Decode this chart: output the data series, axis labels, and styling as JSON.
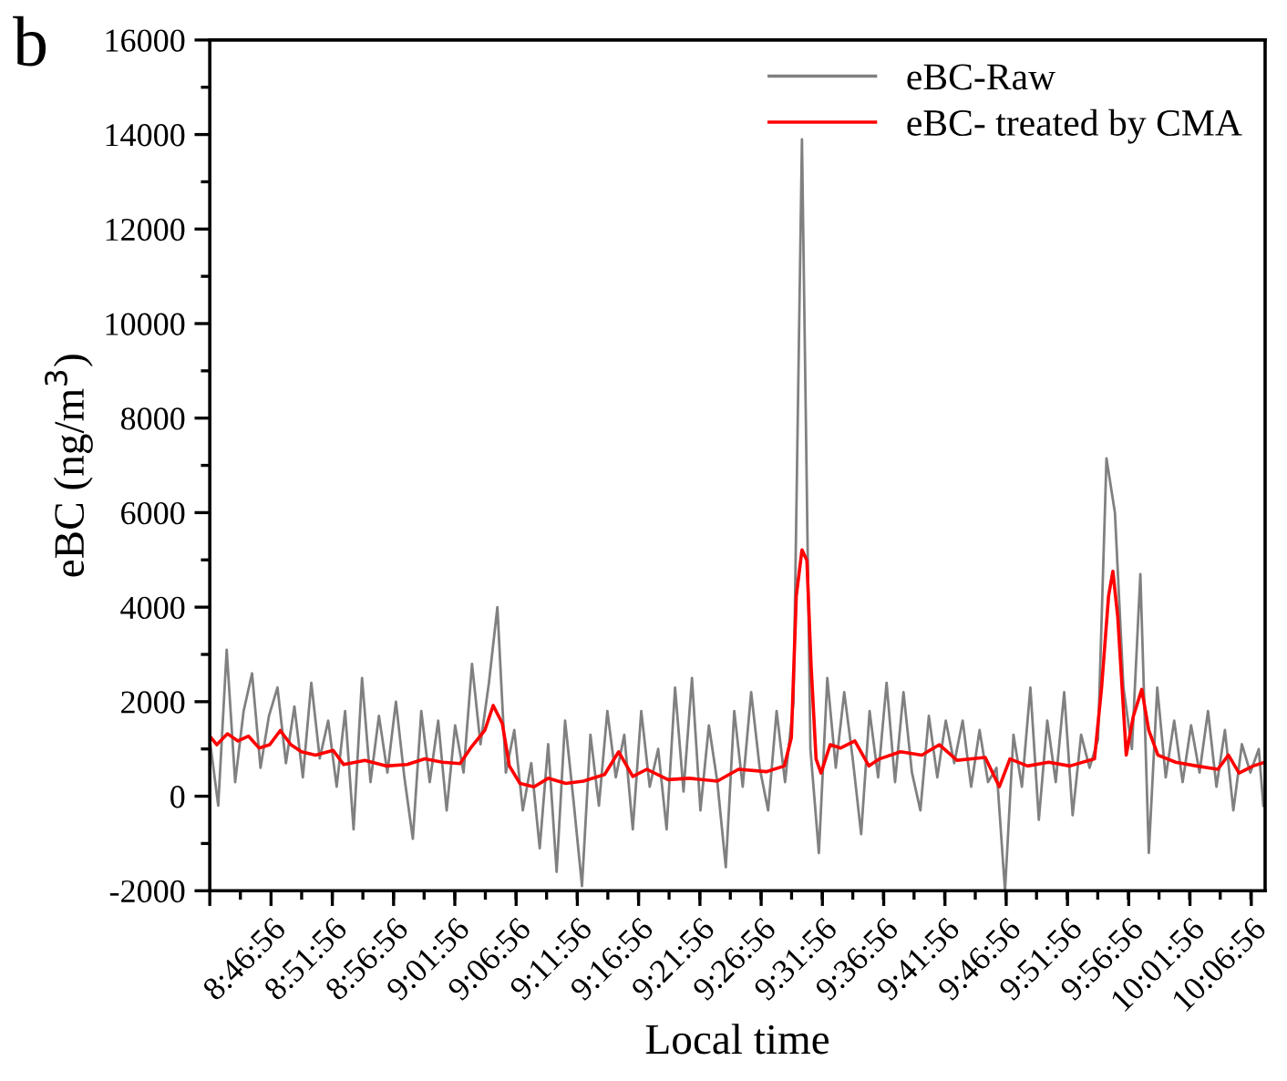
{
  "chart_data": {
    "type": "line",
    "title": "b",
    "xlabel": "Local time",
    "ylabel": "eBC (ng/m$^{3}$)",
    "xlim": [
      8.6989,
      10.1344
    ],
    "ylim": [
      -2000,
      16000
    ],
    "xticks": [
      {
        "value": 8.6989,
        "label": null
      },
      {
        "value": 8.7822,
        "label": "8:46:56"
      },
      {
        "value": 8.8656,
        "label": "8:51:56"
      },
      {
        "value": 8.9489,
        "label": "8:56:56"
      },
      {
        "value": 9.0322,
        "label": "9:01:56"
      },
      {
        "value": 9.1156,
        "label": "9:06:56"
      },
      {
        "value": 9.1989,
        "label": "9:11:56"
      },
      {
        "value": 9.2822,
        "label": "9:16:56"
      },
      {
        "value": 9.3656,
        "label": "9:21:56"
      },
      {
        "value": 9.4489,
        "label": "9:26:56"
      },
      {
        "value": 9.5322,
        "label": "9:31:56"
      },
      {
        "value": 9.6156,
        "label": "9:36:56"
      },
      {
        "value": 9.6989,
        "label": "9:41:56"
      },
      {
        "value": 9.7822,
        "label": "9:46:56"
      },
      {
        "value": 9.8656,
        "label": "9:51:56"
      },
      {
        "value": 9.9489,
        "label": "9:56:56"
      },
      {
        "value": 10.0322,
        "label": "10:01:56"
      },
      {
        "value": 10.1156,
        "label": "10:06:56"
      }
    ],
    "yticks": [
      -2000,
      0,
      2000,
      4000,
      6000,
      8000,
      10000,
      12000,
      14000,
      16000
    ],
    "grid": false,
    "legend": "top right",
    "line_style": "solid",
    "marker": "none",
    "series": [
      {
        "name": "eBC-Raw",
        "color": "#808080",
        "x": [
          8.6989,
          8.7104,
          8.7219,
          8.7334,
          8.7449,
          8.7564,
          8.7679,
          8.7794,
          8.791,
          8.8025,
          8.814,
          8.8255,
          8.837,
          8.8485,
          8.86,
          8.8715,
          8.883,
          8.8945,
          8.906,
          8.9175,
          8.929,
          8.9405,
          8.9521,
          8.9636,
          8.9751,
          8.9866,
          8.9981,
          9.0096,
          9.0211,
          9.0326,
          9.0441,
          9.0556,
          9.0671,
          9.0786,
          9.0901,
          9.1016,
          9.1131,
          9.1247,
          9.1362,
          9.1477,
          9.1592,
          9.1707,
          9.1822,
          9.1937,
          9.2052,
          9.2167,
          9.2282,
          9.2397,
          9.2512,
          9.2627,
          9.2743,
          9.2858,
          9.2973,
          9.3088,
          9.3203,
          9.3318,
          9.3433,
          9.3548,
          9.3663,
          9.3778,
          9.3893,
          9.4008,
          9.4123,
          9.4238,
          9.4353,
          9.4469,
          9.4584,
          9.4699,
          9.4814,
          9.4929,
          9.5044,
          9.5159,
          9.5274,
          9.5389,
          9.5504,
          9.5619,
          9.5734,
          9.5849,
          9.5964,
          9.608,
          9.6195,
          9.631,
          9.6425,
          9.654,
          9.6655,
          9.677,
          9.6885,
          9.7,
          9.7115,
          9.723,
          9.7345,
          9.746,
          9.7575,
          9.769,
          9.7806,
          9.7921,
          9.8036,
          9.8151,
          9.8266,
          9.8381,
          9.8496,
          9.8611,
          9.8726,
          9.8841,
          9.8956,
          9.9071,
          9.9186,
          9.9301,
          9.9417,
          9.9532,
          9.9647,
          9.9762,
          9.9877,
          9.9992,
          10.0107,
          10.0222,
          10.0337,
          10.0452,
          10.0567,
          10.0682,
          10.0797,
          10.0912,
          10.1028,
          10.1143,
          10.1258,
          10.132
        ],
        "values": [
          1200,
          -200,
          3100,
          300,
          1800,
          2600,
          600,
          1700,
          2300,
          700,
          1900,
          400,
          2400,
          800,
          1600,
          200,
          1800,
          -700,
          2500,
          300,
          1700,
          500,
          2000,
          400,
          -900,
          1800,
          300,
          1600,
          -300,
          1500,
          500,
          2800,
          1100,
          2400,
          4000,
          500,
          1400,
          -300,
          700,
          -1100,
          1100,
          -1600,
          1600,
          -100,
          -1900,
          1300,
          -200,
          1800,
          400,
          1300,
          -700,
          1800,
          200,
          1000,
          -700,
          2300,
          100,
          2500,
          -300,
          1500,
          300,
          -1500,
          1800,
          200,
          2200,
          600,
          -300,
          1800,
          300,
          2000,
          13900,
          1000,
          -1200,
          2500,
          600,
          2200,
          800,
          -800,
          1800,
          400,
          2400,
          300,
          2200,
          500,
          -300,
          1700,
          400,
          1600,
          700,
          1600,
          200,
          1400,
          300,
          600,
          -2000,
          1300,
          200,
          2300,
          -500,
          1600,
          300,
          2200,
          -400,
          1300,
          600,
          1200,
          7150,
          6000,
          2300,
          1000,
          4700,
          -1200,
          2300,
          400,
          1600,
          300,
          1500,
          500,
          1800,
          200,
          1400,
          -300,
          1100,
          500,
          1000,
          -200
        ]
      },
      {
        "name": "eBC- treated by CMA",
        "color": "#ff0000",
        "x": [
          8.6989,
          8.7085,
          8.7229,
          8.7373,
          8.7516,
          8.766,
          8.7804,
          8.7948,
          8.8092,
          8.8236,
          8.8427,
          8.8667,
          8.8811,
          8.9099,
          8.9386,
          8.9674,
          8.9914,
          9.0153,
          9.0393,
          9.0537,
          9.0729,
          9.0844,
          9.0968,
          9.1064,
          9.1208,
          9.14,
          9.1592,
          9.1831,
          9.2071,
          9.2359,
          9.2551,
          9.2743,
          9.2934,
          9.3222,
          9.351,
          9.3893,
          9.4181,
          9.4565,
          9.4804,
          9.49,
          9.4967,
          9.5044,
          9.5111,
          9.5169,
          9.5236,
          9.5303,
          9.5428,
          9.5571,
          9.5763,
          9.5955,
          9.6099,
          9.6386,
          9.6674,
          9.6914,
          9.7153,
          9.7537,
          9.7729,
          9.7873,
          9.8112,
          9.84,
          9.8688,
          9.9023,
          9.9119,
          9.9215,
          9.9273,
          9.934,
          9.9455,
          9.9551,
          9.9666,
          9.9762,
          9.9886,
          10.0126,
          10.0413,
          10.0701,
          10.0845,
          10.0989,
          10.1181,
          10.1344
        ],
        "values": [
          1270,
          1090,
          1320,
          1170,
          1270,
          1020,
          1090,
          1390,
          1090,
          940,
          870,
          970,
          670,
          760,
          640,
          670,
          790,
          720,
          690,
          1020,
          1390,
          1920,
          1540,
          640,
          270,
          200,
          380,
          270,
          320,
          460,
          940,
          420,
          570,
          350,
          380,
          320,
          570,
          520,
          640,
          1240,
          4240,
          5210,
          4990,
          2740,
          790,
          490,
          1090,
          1020,
          1170,
          640,
          790,
          940,
          870,
          1090,
          760,
          820,
          200,
          790,
          640,
          720,
          640,
          790,
          2290,
          4240,
          4760,
          3790,
          870,
          1690,
          2260,
          1390,
          870,
          720,
          640,
          570,
          870,
          490,
          640,
          720
        ]
      }
    ]
  }
}
